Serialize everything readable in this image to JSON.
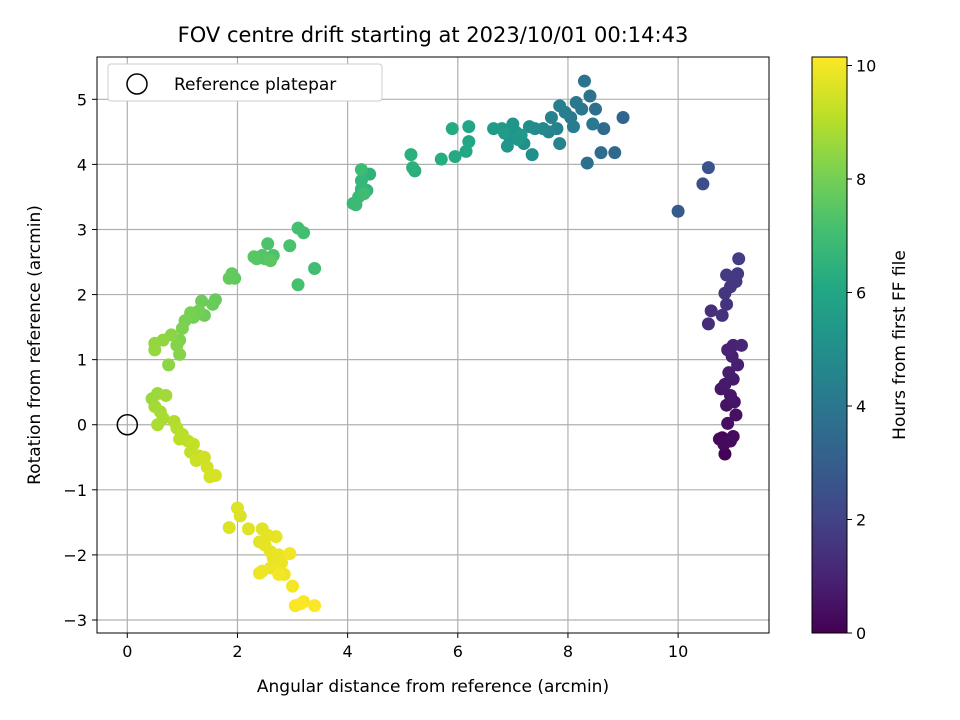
{
  "colors": {
    "grid": "#b0b0b0",
    "axis": "#000000",
    "viridis": [
      "#440154",
      "#482475",
      "#414487",
      "#355f8d",
      "#2a788e",
      "#21918c",
      "#22a884",
      "#44bf70",
      "#7ad151",
      "#bddf26",
      "#fde725"
    ]
  },
  "chart_data": {
    "type": "scatter",
    "title": "FOV centre drift starting at 2023/10/01 00:14:43",
    "xlabel": "Angular distance from reference (arcmin)",
    "ylabel": "Rotation from reference (arcmin)",
    "xlim": [
      -0.55,
      11.65
    ],
    "ylim": [
      -3.2,
      5.65
    ],
    "xticks": [
      0,
      2,
      4,
      6,
      8,
      10
    ],
    "yticks": [
      -3,
      -2,
      -1,
      0,
      1,
      2,
      3,
      4,
      5
    ],
    "grid": true,
    "legend": {
      "position": "top-left",
      "entries": [
        "Reference platepar"
      ]
    },
    "reference_point": {
      "x": 0,
      "y": 0
    },
    "colorbar": {
      "label": "Hours from first FF file",
      "min": 0,
      "max": 10.15,
      "ticks": [
        0,
        2,
        4,
        6,
        8,
        10
      ]
    },
    "points": [
      [
        10.85,
        -0.45,
        0.05
      ],
      [
        10.8,
        -0.2,
        0.15
      ],
      [
        10.75,
        -0.22,
        0.2
      ],
      [
        10.83,
        -0.3,
        0.25
      ],
      [
        10.95,
        -0.25,
        0.3
      ],
      [
        11.0,
        -0.18,
        0.35
      ],
      [
        10.9,
        0.02,
        0.4
      ],
      [
        11.05,
        0.15,
        0.45
      ],
      [
        10.88,
        0.3,
        0.5
      ],
      [
        11.02,
        0.35,
        0.55
      ],
      [
        10.95,
        0.45,
        0.6
      ],
      [
        10.78,
        0.55,
        0.65
      ],
      [
        10.85,
        0.62,
        0.7
      ],
      [
        11.0,
        0.7,
        0.75
      ],
      [
        10.92,
        0.8,
        0.8
      ],
      [
        11.08,
        0.92,
        0.85
      ],
      [
        10.98,
        1.05,
        0.9
      ],
      [
        10.9,
        1.15,
        0.95
      ],
      [
        11.0,
        1.22,
        1.0
      ],
      [
        11.15,
        1.22,
        1.05
      ],
      [
        10.55,
        1.55,
        1.3
      ],
      [
        10.6,
        1.75,
        1.35
      ],
      [
        10.8,
        1.68,
        1.45
      ],
      [
        10.88,
        1.85,
        1.5
      ],
      [
        10.85,
        2.02,
        1.55
      ],
      [
        10.95,
        2.12,
        1.6
      ],
      [
        11.05,
        2.2,
        1.65
      ],
      [
        10.88,
        2.3,
        1.7
      ],
      [
        11.08,
        2.32,
        1.75
      ],
      [
        11.1,
        2.55,
        1.8
      ],
      [
        10.45,
        3.7,
        2.4
      ],
      [
        10.55,
        3.95,
        2.6
      ],
      [
        10.0,
        3.28,
        2.85
      ],
      [
        9.0,
        4.72,
        3.3
      ],
      [
        8.85,
        4.18,
        3.45
      ],
      [
        8.65,
        4.55,
        3.55
      ],
      [
        8.6,
        4.18,
        3.6
      ],
      [
        8.35,
        4.02,
        3.7
      ],
      [
        8.5,
        4.85,
        3.75
      ],
      [
        8.4,
        5.05,
        3.8
      ],
      [
        8.3,
        5.28,
        3.9
      ],
      [
        8.15,
        4.95,
        4.0
      ],
      [
        8.25,
        4.85,
        4.05
      ],
      [
        8.05,
        4.72,
        4.1
      ],
      [
        8.45,
        4.62,
        4.15
      ],
      [
        8.1,
        4.58,
        4.2
      ],
      [
        7.95,
        4.8,
        4.3
      ],
      [
        7.85,
        4.9,
        4.35
      ],
      [
        7.7,
        4.72,
        4.45
      ],
      [
        7.8,
        4.55,
        4.5
      ],
      [
        7.85,
        4.32,
        4.55
      ],
      [
        7.65,
        4.5,
        4.6
      ],
      [
        7.55,
        4.55,
        4.7
      ],
      [
        7.4,
        4.55,
        4.8
      ],
      [
        7.3,
        4.58,
        4.9
      ],
      [
        7.35,
        4.15,
        5.0
      ],
      [
        7.2,
        4.32,
        5.05
      ],
      [
        7.05,
        4.5,
        5.1
      ],
      [
        7.0,
        4.62,
        5.2
      ],
      [
        6.95,
        4.4,
        5.25
      ],
      [
        6.9,
        4.28,
        5.3
      ],
      [
        7.1,
        4.38,
        5.35
      ],
      [
        6.8,
        4.55,
        5.4
      ],
      [
        6.65,
        4.55,
        5.5
      ],
      [
        6.85,
        4.48,
        5.55
      ],
      [
        7.15,
        4.45,
        5.45
      ],
      [
        6.2,
        4.58,
        6.0
      ],
      [
        6.2,
        4.35,
        6.05
      ],
      [
        6.15,
        4.2,
        6.1
      ],
      [
        5.95,
        4.12,
        6.15
      ],
      [
        5.9,
        4.55,
        6.2
      ],
      [
        5.7,
        4.08,
        6.25
      ],
      [
        5.22,
        3.9,
        6.35
      ],
      [
        5.15,
        4.15,
        6.4
      ],
      [
        5.18,
        3.95,
        6.45
      ],
      [
        4.4,
        3.85,
        6.55
      ],
      [
        4.35,
        3.6,
        6.6
      ],
      [
        4.25,
        3.75,
        6.65
      ],
      [
        4.25,
        3.62,
        6.7
      ],
      [
        4.2,
        3.5,
        6.75
      ],
      [
        4.1,
        3.4,
        6.8
      ],
      [
        4.15,
        3.38,
        6.85
      ],
      [
        4.25,
        3.92,
        6.9
      ],
      [
        4.3,
        3.55,
        6.95
      ],
      [
        3.4,
        2.4,
        7.0
      ],
      [
        3.2,
        2.95,
        7.05
      ],
      [
        3.1,
        3.02,
        7.1
      ],
      [
        3.1,
        2.15,
        7.15
      ],
      [
        2.95,
        2.75,
        7.2
      ],
      [
        2.65,
        2.6,
        7.25
      ],
      [
        2.55,
        2.78,
        7.3
      ],
      [
        2.45,
        2.6,
        7.35
      ],
      [
        2.5,
        2.55,
        7.4
      ],
      [
        2.35,
        2.55,
        7.45
      ],
      [
        2.3,
        2.58,
        7.5
      ],
      [
        2.6,
        2.52,
        7.55
      ],
      [
        1.95,
        2.25,
        7.6
      ],
      [
        1.9,
        2.32,
        7.65
      ],
      [
        1.85,
        2.25,
        7.7
      ],
      [
        1.6,
        1.92,
        7.75
      ],
      [
        1.55,
        1.85,
        7.8
      ],
      [
        1.35,
        1.9,
        7.85
      ],
      [
        1.4,
        1.68,
        7.9
      ],
      [
        1.3,
        1.75,
        7.95
      ],
      [
        1.2,
        1.65,
        8.0
      ],
      [
        1.15,
        1.72,
        8.05
      ],
      [
        1.05,
        1.6,
        8.1
      ],
      [
        1.0,
        1.48,
        8.15
      ],
      [
        0.95,
        1.3,
        8.2
      ],
      [
        0.9,
        1.22,
        8.25
      ],
      [
        0.95,
        1.08,
        8.3
      ],
      [
        0.8,
        1.38,
        8.35
      ],
      [
        0.75,
        0.92,
        8.4
      ],
      [
        0.65,
        1.3,
        8.45
      ],
      [
        0.5,
        1.25,
        8.5
      ],
      [
        0.5,
        1.15,
        8.55
      ],
      [
        0.45,
        0.4,
        8.6
      ],
      [
        0.55,
        0.48,
        8.65
      ],
      [
        0.7,
        0.45,
        8.7
      ],
      [
        0.5,
        0.28,
        8.75
      ],
      [
        0.6,
        0.2,
        8.8
      ],
      [
        0.65,
        0.1,
        8.85
      ],
      [
        0.55,
        0.0,
        8.9
      ],
      [
        0.85,
        0.05,
        8.95
      ],
      [
        0.9,
        -0.05,
        9.0
      ],
      [
        1.0,
        -0.15,
        9.05
      ],
      [
        0.95,
        -0.22,
        9.1
      ],
      [
        1.1,
        -0.25,
        9.15
      ],
      [
        1.2,
        -0.3,
        9.2
      ],
      [
        1.15,
        -0.42,
        9.25
      ],
      [
        1.3,
        -0.48,
        9.3
      ],
      [
        1.25,
        -0.55,
        9.35
      ],
      [
        1.4,
        -0.5,
        9.4
      ],
      [
        1.45,
        -0.65,
        9.45
      ],
      [
        1.5,
        -0.8,
        9.5
      ],
      [
        1.6,
        -0.78,
        9.55
      ],
      [
        1.85,
        -1.58,
        9.6
      ],
      [
        2.05,
        -1.4,
        9.62
      ],
      [
        2.0,
        -1.28,
        9.65
      ],
      [
        2.2,
        -1.6,
        9.68
      ],
      [
        2.45,
        -1.6,
        9.7
      ],
      [
        2.4,
        -1.8,
        9.72
      ],
      [
        2.55,
        -1.7,
        9.74
      ],
      [
        2.5,
        -1.85,
        9.76
      ],
      [
        2.7,
        -1.72,
        9.78
      ],
      [
        2.6,
        -1.95,
        9.8
      ],
      [
        2.65,
        -2.05,
        9.82
      ],
      [
        2.75,
        -2.0,
        9.84
      ],
      [
        2.8,
        -2.12,
        9.86
      ],
      [
        2.6,
        -2.2,
        9.88
      ],
      [
        2.45,
        -2.25,
        9.9
      ],
      [
        2.4,
        -2.28,
        9.92
      ],
      [
        2.85,
        -2.3,
        9.94
      ],
      [
        2.95,
        -1.98,
        9.96
      ],
      [
        2.75,
        -2.3,
        9.98
      ],
      [
        3.0,
        -2.48,
        10.0
      ],
      [
        3.2,
        -2.72,
        10.05
      ],
      [
        3.05,
        -2.78,
        10.08
      ],
      [
        3.4,
        -2.78,
        10.12
      ],
      [
        3.15,
        -2.75,
        10.1
      ]
    ]
  }
}
